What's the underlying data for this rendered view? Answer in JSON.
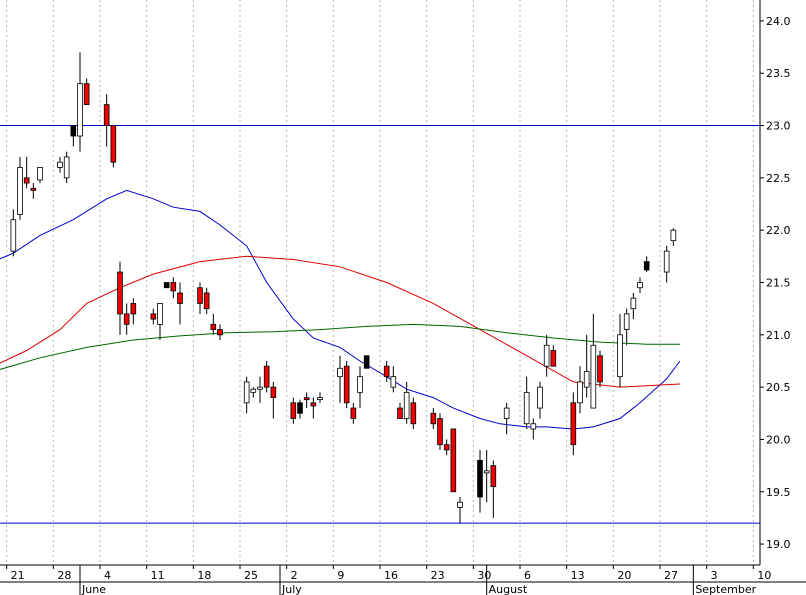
{
  "chart_data": {
    "type": "candlestick",
    "grid": true,
    "x_domain": [
      "2023-05-20",
      "2023-09-11"
    ],
    "ylim": [
      18.8,
      24.2
    ],
    "ytick_values": [
      19.0,
      19.5,
      20.0,
      20.5,
      21.0,
      21.5,
      22.0,
      22.5,
      23.0,
      23.5,
      24.0
    ],
    "ytick_labels": [
      "19.0",
      "19.5",
      "20.0",
      "20.5",
      "21.0",
      "21.5",
      "22.0",
      "22.5",
      "23.0",
      "23.5",
      "24.0"
    ],
    "x_ticks": [
      {
        "date": "2023-05-21",
        "label": "21"
      },
      {
        "date": "2023-05-28",
        "label": "28"
      },
      {
        "date": "2023-06-04",
        "label": "4"
      },
      {
        "date": "2023-06-11",
        "label": "11"
      },
      {
        "date": "2023-06-18",
        "label": "18"
      },
      {
        "date": "2023-06-25",
        "label": "25"
      },
      {
        "date": "2023-07-02",
        "label": "2"
      },
      {
        "date": "2023-07-09",
        "label": "9"
      },
      {
        "date": "2023-07-16",
        "label": "16"
      },
      {
        "date": "2023-07-23",
        "label": "23"
      },
      {
        "date": "2023-07-30",
        "label": "30"
      },
      {
        "date": "2023-08-06",
        "label": "6"
      },
      {
        "date": "2023-08-13",
        "label": "13"
      },
      {
        "date": "2023-08-20",
        "label": "20"
      },
      {
        "date": "2023-08-27",
        "label": "27"
      },
      {
        "date": "2023-09-03",
        "label": "3"
      },
      {
        "date": "2023-09-10",
        "label": "10"
      }
    ],
    "month_labels": [
      {
        "date": "2023-06-01",
        "label": "June"
      },
      {
        "date": "2023-07-01",
        "label": "July"
      },
      {
        "date": "2023-08-01",
        "label": "August"
      },
      {
        "date": "2023-09-01",
        "label": "September"
      }
    ],
    "horizontal_lines": [
      {
        "value": 23.0,
        "color": "#0000cc"
      },
      {
        "value": 19.2,
        "color": "#0000cc"
      }
    ],
    "colors": {
      "up": "#ffffff",
      "down": "#ee0000",
      "down_alt": "#000000",
      "wick": "#000000"
    },
    "candles": [
      {
        "date": "2023-05-19",
        "o": 21.8,
        "h": 22.0,
        "l": 21.7,
        "c": 22.0
      },
      {
        "date": "2023-05-22",
        "o": 21.8,
        "h": 22.2,
        "l": 21.75,
        "c": 22.1
      },
      {
        "date": "2023-05-23",
        "o": 22.15,
        "h": 22.7,
        "l": 22.1,
        "c": 22.6
      },
      {
        "date": "2023-05-24",
        "o": 22.5,
        "h": 22.7,
        "l": 22.4,
        "c": 22.45
      },
      {
        "date": "2023-05-25",
        "o": 22.4,
        "h": 22.45,
        "l": 22.3,
        "c": 22.38
      },
      {
        "date": "2023-05-26",
        "o": 22.48,
        "h": 22.6,
        "l": 22.45,
        "c": 22.6
      },
      {
        "date": "2023-05-29",
        "o": 22.6,
        "h": 22.7,
        "l": 22.55,
        "c": 22.65
      },
      {
        "date": "2023-05-30",
        "o": 22.5,
        "h": 22.75,
        "l": 22.45,
        "c": 22.7
      },
      {
        "date": "2023-05-31",
        "o": 22.9,
        "h": 23.0,
        "l": 22.8,
        "c": 23.0,
        "color": "black"
      },
      {
        "date": "2023-06-01",
        "o": 22.9,
        "h": 23.7,
        "l": 22.75,
        "c": 23.4
      },
      {
        "date": "2023-06-02",
        "o": 23.4,
        "h": 23.45,
        "l": 23.2,
        "c": 23.2
      },
      {
        "date": "2023-06-05",
        "o": 23.2,
        "h": 23.3,
        "l": 22.8,
        "c": 23.0
      },
      {
        "date": "2023-06-06",
        "o": 23.0,
        "h": 23.0,
        "l": 22.6,
        "c": 22.65
      },
      {
        "date": "2023-06-07",
        "o": 21.6,
        "h": 21.7,
        "l": 21.0,
        "c": 21.2
      },
      {
        "date": "2023-06-08",
        "o": 21.2,
        "h": 21.3,
        "l": 21.0,
        "c": 21.1
      },
      {
        "date": "2023-06-09",
        "o": 21.3,
        "h": 21.35,
        "l": 21.1,
        "c": 21.2
      },
      {
        "date": "2023-06-12",
        "o": 21.2,
        "h": 21.25,
        "l": 21.1,
        "c": 21.15
      },
      {
        "date": "2023-06-13",
        "o": 21.1,
        "h": 21.3,
        "l": 20.95,
        "c": 21.3
      },
      {
        "date": "2023-06-14",
        "o": 21.5,
        "h": 21.5,
        "l": 21.45,
        "c": 21.45,
        "color": "black"
      },
      {
        "date": "2023-06-15",
        "o": 21.5,
        "h": 21.55,
        "l": 21.35,
        "c": 21.42
      },
      {
        "date": "2023-06-16",
        "o": 21.4,
        "h": 21.5,
        "l": 21.1,
        "c": 21.3
      },
      {
        "date": "2023-06-19",
        "o": 21.45,
        "h": 21.5,
        "l": 21.2,
        "c": 21.3
      },
      {
        "date": "2023-06-20",
        "o": 21.4,
        "h": 21.45,
        "l": 21.2,
        "c": 21.25
      },
      {
        "date": "2023-06-21",
        "o": 21.1,
        "h": 21.2,
        "l": 21.0,
        "c": 21.05
      },
      {
        "date": "2023-06-22",
        "o": 21.05,
        "h": 21.1,
        "l": 20.95,
        "c": 21.0
      },
      {
        "date": "2023-06-26",
        "o": 20.35,
        "h": 20.6,
        "l": 20.25,
        "c": 20.55
      },
      {
        "date": "2023-06-27",
        "o": 20.45,
        "h": 20.5,
        "l": 20.4,
        "c": 20.48
      },
      {
        "date": "2023-06-28",
        "o": 20.48,
        "h": 20.6,
        "l": 20.35,
        "c": 20.5
      },
      {
        "date": "2023-06-29",
        "o": 20.7,
        "h": 20.75,
        "l": 20.45,
        "c": 20.5
      },
      {
        "date": "2023-06-30",
        "o": 20.5,
        "h": 20.55,
        "l": 20.2,
        "c": 20.4
      },
      {
        "date": "2023-07-03",
        "o": 20.35,
        "h": 20.4,
        "l": 20.15,
        "c": 20.2
      },
      {
        "date": "2023-07-04",
        "o": 20.25,
        "h": 20.38,
        "l": 20.2,
        "c": 20.35,
        "color": "black"
      },
      {
        "date": "2023-07-05",
        "o": 20.4,
        "h": 20.45,
        "l": 20.3,
        "c": 20.38
      },
      {
        "date": "2023-07-06",
        "o": 20.35,
        "h": 20.4,
        "l": 20.2,
        "c": 20.32
      },
      {
        "date": "2023-07-07",
        "o": 20.4,
        "h": 20.45,
        "l": 20.35,
        "c": 20.4
      },
      {
        "date": "2023-07-10",
        "o": 20.6,
        "h": 20.8,
        "l": 20.35,
        "c": 20.68
      },
      {
        "date": "2023-07-11",
        "o": 20.7,
        "h": 20.75,
        "l": 20.3,
        "c": 20.35
      },
      {
        "date": "2023-07-12",
        "o": 20.3,
        "h": 20.35,
        "l": 20.15,
        "c": 20.2
      },
      {
        "date": "2023-07-13",
        "o": 20.45,
        "h": 20.7,
        "l": 20.3,
        "c": 20.6
      },
      {
        "date": "2023-07-14",
        "o": 20.8,
        "h": 20.8,
        "l": 20.68,
        "c": 20.68,
        "color": "black"
      },
      {
        "date": "2023-07-17",
        "o": 20.7,
        "h": 20.75,
        "l": 20.55,
        "c": 20.6
      },
      {
        "date": "2023-07-18",
        "o": 20.5,
        "h": 20.7,
        "l": 20.45,
        "c": 20.6
      },
      {
        "date": "2023-07-19",
        "o": 20.3,
        "h": 20.35,
        "l": 20.2,
        "c": 20.2
      },
      {
        "date": "2023-07-20",
        "o": 20.2,
        "h": 20.55,
        "l": 20.15,
        "c": 20.45
      },
      {
        "date": "2023-07-21",
        "o": 20.35,
        "h": 20.4,
        "l": 20.1,
        "c": 20.15
      },
      {
        "date": "2023-07-24",
        "o": 20.25,
        "h": 20.3,
        "l": 20.1,
        "c": 20.15
      },
      {
        "date": "2023-07-25",
        "o": 20.2,
        "h": 20.25,
        "l": 19.9,
        "c": 19.95
      },
      {
        "date": "2023-07-26",
        "o": 19.95,
        "h": 20.0,
        "l": 19.85,
        "c": 19.9
      },
      {
        "date": "2023-07-27",
        "o": 20.1,
        "h": 20.1,
        "l": 19.5,
        "c": 19.5
      },
      {
        "date": "2023-07-28",
        "o": 19.35,
        "h": 19.45,
        "l": 19.2,
        "c": 19.4
      },
      {
        "date": "2023-07-31",
        "o": 19.8,
        "h": 19.9,
        "l": 19.3,
        "c": 19.45,
        "color": "black"
      },
      {
        "date": "2023-08-01",
        "o": 19.7,
        "h": 19.9,
        "l": 19.4,
        "c": 19.7
      },
      {
        "date": "2023-08-02",
        "o": 19.75,
        "h": 19.8,
        "l": 19.25,
        "c": 19.55
      },
      {
        "date": "2023-08-04",
        "o": 20.2,
        "h": 20.35,
        "l": 20.05,
        "c": 20.3
      },
      {
        "date": "2023-08-07",
        "o": 20.15,
        "h": 20.6,
        "l": 20.1,
        "c": 20.45
      },
      {
        "date": "2023-08-08",
        "o": 20.1,
        "h": 20.2,
        "l": 20.0,
        "c": 20.15
      },
      {
        "date": "2023-08-09",
        "o": 20.3,
        "h": 20.55,
        "l": 20.2,
        "c": 20.5
      },
      {
        "date": "2023-08-10",
        "o": 20.7,
        "h": 21.0,
        "l": 20.6,
        "c": 20.9
      },
      {
        "date": "2023-08-11",
        "o": 20.85,
        "h": 20.9,
        "l": 20.7,
        "c": 20.7
      },
      {
        "date": "2023-08-14",
        "o": 20.35,
        "h": 20.45,
        "l": 19.85,
        "c": 19.95
      },
      {
        "date": "2023-08-15",
        "o": 20.35,
        "h": 20.7,
        "l": 20.25,
        "c": 20.55
      },
      {
        "date": "2023-08-16",
        "o": 20.5,
        "h": 21.0,
        "l": 20.4,
        "c": 20.65
      },
      {
        "date": "2023-08-17",
        "o": 20.3,
        "h": 21.2,
        "l": 20.3,
        "c": 20.9
      },
      {
        "date": "2023-08-18",
        "o": 20.8,
        "h": 20.85,
        "l": 20.5,
        "c": 20.55
      },
      {
        "date": "2023-08-21",
        "o": 20.6,
        "h": 21.2,
        "l": 20.5,
        "c": 21.0
      },
      {
        "date": "2023-08-22",
        "o": 21.05,
        "h": 21.25,
        "l": 20.9,
        "c": 21.2
      },
      {
        "date": "2023-08-23",
        "o": 21.25,
        "h": 21.4,
        "l": 21.15,
        "c": 21.35
      },
      {
        "date": "2023-08-24",
        "o": 21.45,
        "h": 21.55,
        "l": 21.4,
        "c": 21.5
      },
      {
        "date": "2023-08-25",
        "o": 21.7,
        "h": 21.75,
        "l": 21.6,
        "c": 21.62,
        "color": "black"
      },
      {
        "date": "2023-08-28",
        "o": 21.6,
        "h": 21.85,
        "l": 21.5,
        "c": 21.8
      },
      {
        "date": "2023-08-29",
        "o": 21.9,
        "h": 22.02,
        "l": 21.85,
        "c": 22.0
      }
    ],
    "moving_averages": [
      {
        "color": "#0000cc",
        "points": [
          [
            "2023-05-19",
            21.7
          ],
          [
            "2023-05-22",
            21.78
          ],
          [
            "2023-05-26",
            21.95
          ],
          [
            "2023-05-31",
            22.1
          ],
          [
            "2023-06-05",
            22.3
          ],
          [
            "2023-06-08",
            22.38
          ],
          [
            "2023-06-12",
            22.3
          ],
          [
            "2023-06-15",
            22.22
          ],
          [
            "2023-06-19",
            22.18
          ],
          [
            "2023-06-22",
            22.05
          ],
          [
            "2023-06-26",
            21.85
          ],
          [
            "2023-06-29",
            21.5
          ],
          [
            "2023-07-03",
            21.15
          ],
          [
            "2023-07-06",
            20.97
          ],
          [
            "2023-07-10",
            20.88
          ],
          [
            "2023-07-13",
            20.75
          ],
          [
            "2023-07-17",
            20.6
          ],
          [
            "2023-07-20",
            20.48
          ],
          [
            "2023-07-24",
            20.4
          ],
          [
            "2023-07-27",
            20.3
          ],
          [
            "2023-07-31",
            20.2
          ],
          [
            "2023-08-03",
            20.15
          ],
          [
            "2023-08-07",
            20.12
          ],
          [
            "2023-08-10",
            20.12
          ],
          [
            "2023-08-14",
            20.1
          ],
          [
            "2023-08-17",
            20.12
          ],
          [
            "2023-08-21",
            20.2
          ],
          [
            "2023-08-24",
            20.35
          ],
          [
            "2023-08-28",
            20.58
          ],
          [
            "2023-08-30",
            20.75
          ]
        ]
      },
      {
        "color": "#dd0000",
        "points": [
          [
            "2023-05-19",
            20.7
          ],
          [
            "2023-05-24",
            20.85
          ],
          [
            "2023-05-29",
            21.05
          ],
          [
            "2023-06-02",
            21.3
          ],
          [
            "2023-06-07",
            21.45
          ],
          [
            "2023-06-12",
            21.58
          ],
          [
            "2023-06-19",
            21.7
          ],
          [
            "2023-06-26",
            21.75
          ],
          [
            "2023-07-03",
            21.72
          ],
          [
            "2023-07-10",
            21.65
          ],
          [
            "2023-07-17",
            21.5
          ],
          [
            "2023-07-24",
            21.3
          ],
          [
            "2023-07-31",
            21.05
          ],
          [
            "2023-08-07",
            20.8
          ],
          [
            "2023-08-14",
            20.55
          ],
          [
            "2023-08-21",
            20.5
          ],
          [
            "2023-08-30",
            20.53
          ]
        ]
      },
      {
        "color": "#006600",
        "points": [
          [
            "2023-05-19",
            20.65
          ],
          [
            "2023-05-26",
            20.78
          ],
          [
            "2023-06-02",
            20.88
          ],
          [
            "2023-06-09",
            20.95
          ],
          [
            "2023-06-16",
            20.99
          ],
          [
            "2023-06-23",
            21.02
          ],
          [
            "2023-06-30",
            21.03
          ],
          [
            "2023-07-07",
            21.05
          ],
          [
            "2023-07-14",
            21.08
          ],
          [
            "2023-07-21",
            21.1
          ],
          [
            "2023-07-28",
            21.08
          ],
          [
            "2023-08-04",
            21.02
          ],
          [
            "2023-08-11",
            20.97
          ],
          [
            "2023-08-18",
            20.93
          ],
          [
            "2023-08-25",
            20.91
          ],
          [
            "2023-08-30",
            20.91
          ]
        ]
      }
    ]
  }
}
